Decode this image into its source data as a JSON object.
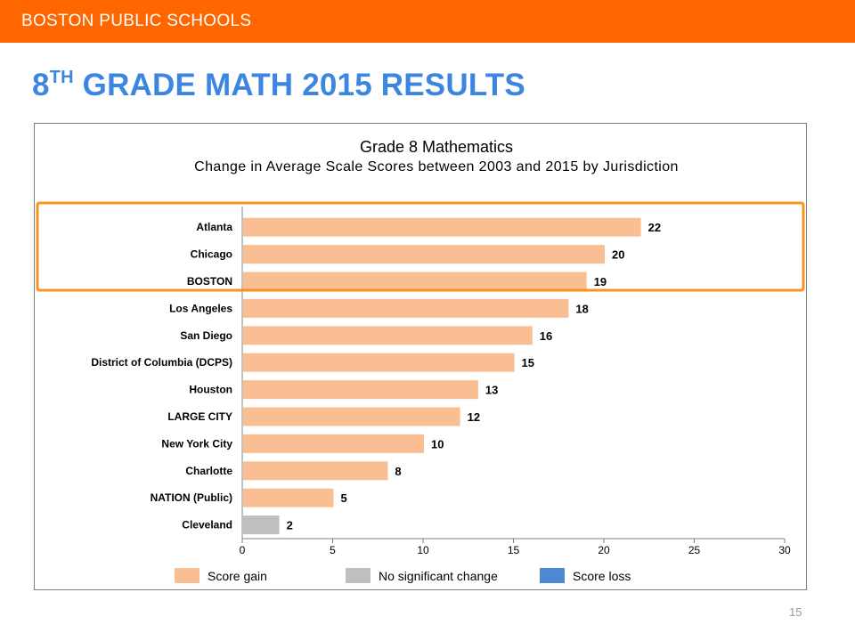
{
  "header": {
    "org": "BOSTON PUBLIC SCHOOLS"
  },
  "slide": {
    "title_prefix": "8",
    "title_sup": "TH",
    "title_rest": " GRADE MATH 2015 RESULTS",
    "page_number": "15"
  },
  "colors": {
    "banner": "#ff6600",
    "title": "#3a86e0",
    "gain": "#f9be92",
    "no_change": "#bfbfbf",
    "loss": "#4f88d3",
    "highlight_box": "#f7941d"
  },
  "chart_data": {
    "type": "bar",
    "orientation": "horizontal",
    "title": "Grade 8 Mathematics",
    "subtitle": "Change in Average Scale Scores between 2003 and 2015 by Jurisdiction",
    "categories": [
      "Atlanta",
      "Chicago",
      "BOSTON",
      "Los Angeles",
      "San Diego",
      "District of Columbia (DCPS)",
      "Houston",
      "LARGE CITY",
      "New York City",
      "Charlotte",
      "NATION (Public)",
      "Cleveland"
    ],
    "values": [
      22,
      20,
      19,
      18,
      16,
      15,
      13,
      12,
      10,
      8,
      5,
      2
    ],
    "value_labels": [
      "22",
      "20",
      "19",
      "18",
      "16",
      "15",
      "13",
      "12",
      "10",
      "8",
      "5",
      "2"
    ],
    "status": [
      "gain",
      "gain",
      "gain",
      "gain",
      "gain",
      "gain",
      "gain",
      "gain",
      "gain",
      "gain",
      "gain",
      "no_change"
    ],
    "xlim": [
      0,
      30
    ],
    "xticks": [
      0,
      5,
      10,
      15,
      20,
      25,
      30
    ],
    "xtick_labels": [
      "0",
      "5",
      "10",
      "15",
      "20",
      "25",
      "30"
    ],
    "legend": [
      "Score gain",
      "No significant change",
      "Score loss"
    ],
    "legend_position": "bottom",
    "grid": false,
    "highlighted_categories": [
      "Atlanta",
      "Chicago",
      "BOSTON"
    ]
  }
}
